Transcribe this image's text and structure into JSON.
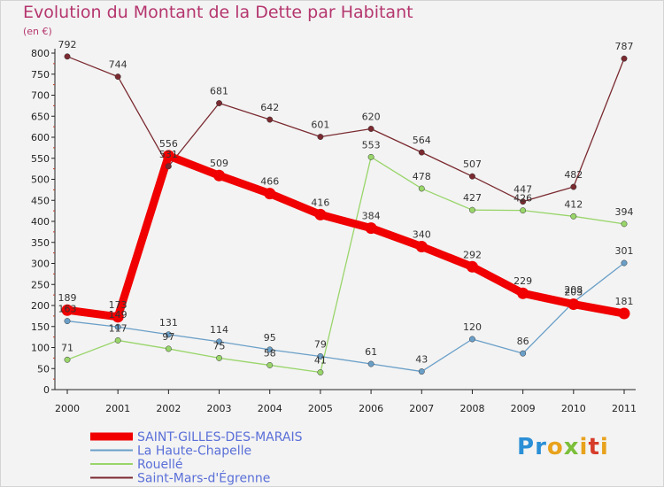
{
  "header": {
    "title": "Evolution du Montant de la Dette par Habitant",
    "subtitle": "(en €)"
  },
  "logo": {
    "text": "Proxiti"
  },
  "chart_data": {
    "type": "line",
    "title": "Evolution du Montant de la Dette par Habitant",
    "subtitle": "(en €)",
    "xlabel": "",
    "ylabel": "",
    "x": [
      "2000",
      "2001",
      "2002",
      "2003",
      "2004",
      "2005",
      "2006",
      "2007",
      "2008",
      "2009",
      "2010",
      "2011"
    ],
    "ylim": [
      0,
      800
    ],
    "yticks": [
      0,
      50,
      100,
      150,
      200,
      250,
      300,
      350,
      400,
      450,
      500,
      550,
      600,
      650,
      700,
      750,
      800
    ],
    "grid": false,
    "legend_position": "bottom-left",
    "series": [
      {
        "name": "SAINT-GILLES-DES-MARAIS",
        "color": "#f00000",
        "values": [
          189,
          173,
          556,
          509,
          466,
          416,
          384,
          340,
          292,
          229,
          203,
          181
        ]
      },
      {
        "name": "La Haute-Chapelle",
        "color": "#6a9fc8",
        "values": [
          163,
          149,
          131,
          114,
          95,
          79,
          61,
          43,
          120,
          86,
          208,
          301
        ]
      },
      {
        "name": "Rouellé",
        "color": "#99d56a",
        "values": [
          71,
          117,
          97,
          75,
          58,
          41,
          553,
          478,
          427,
          426,
          412,
          394
        ]
      },
      {
        "name": "Saint-Mars-d'Égrenne",
        "color": "#7a2a30",
        "values": [
          792,
          744,
          531,
          681,
          642,
          601,
          620,
          564,
          507,
          447,
          482,
          787
        ]
      }
    ]
  }
}
